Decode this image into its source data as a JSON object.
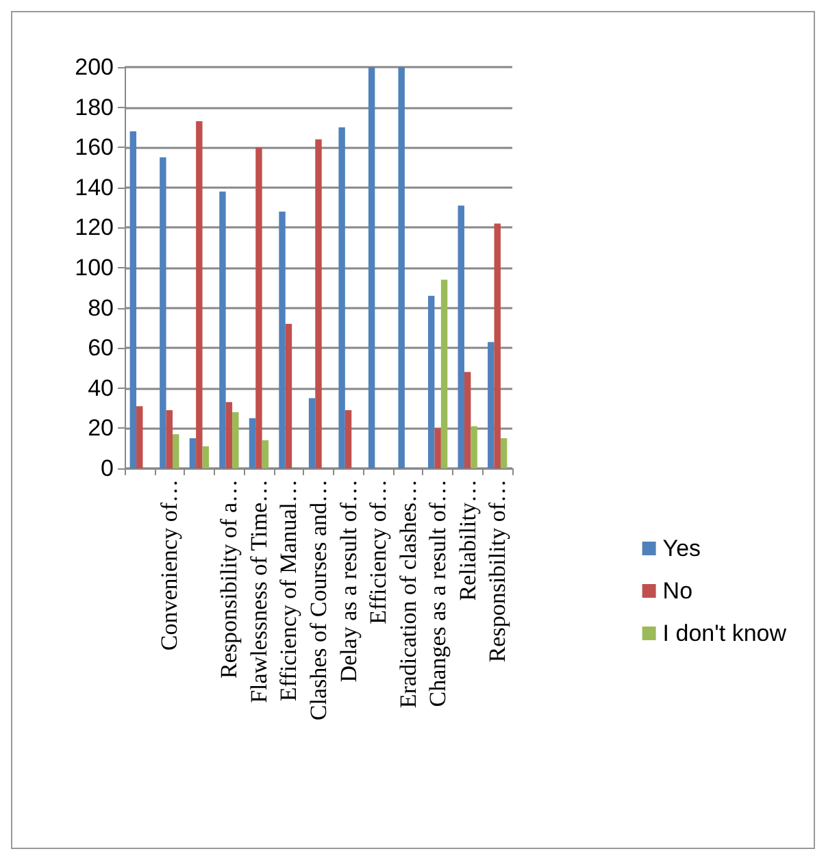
{
  "chart_data": {
    "type": "bar",
    "categories": [
      null,
      "Conveniency of…",
      null,
      "Responsibility of a…",
      "Flawlessness of Time…",
      "Efficiency of Manual…",
      "Clashes of Courses and…",
      "Delay as a result of…",
      "Efficiency of…",
      "Eradication of clashes…",
      "Changes as a result of…",
      "Reliability…",
      "Responsibility of…"
    ],
    "series": [
      {
        "name": "Yes",
        "color": "#4f81bd",
        "values": [
          168,
          155,
          15,
          138,
          25,
          128,
          35,
          170,
          200,
          200,
          86,
          131,
          63
        ]
      },
      {
        "name": "No",
        "color": "#c0504d",
        "values": [
          31,
          29,
          173,
          33,
          160,
          72,
          164,
          29,
          0,
          0,
          20,
          48,
          122
        ]
      },
      {
        "name": "I don't know",
        "color": "#9bbb59",
        "values": [
          0,
          17,
          11,
          28,
          14,
          0,
          0,
          0,
          0,
          0,
          94,
          21,
          15
        ]
      }
    ],
    "ylim": [
      0,
      200
    ],
    "yticks": [
      0,
      20,
      40,
      60,
      80,
      100,
      120,
      140,
      160,
      180,
      200
    ],
    "grid": "y",
    "legend": "right"
  }
}
